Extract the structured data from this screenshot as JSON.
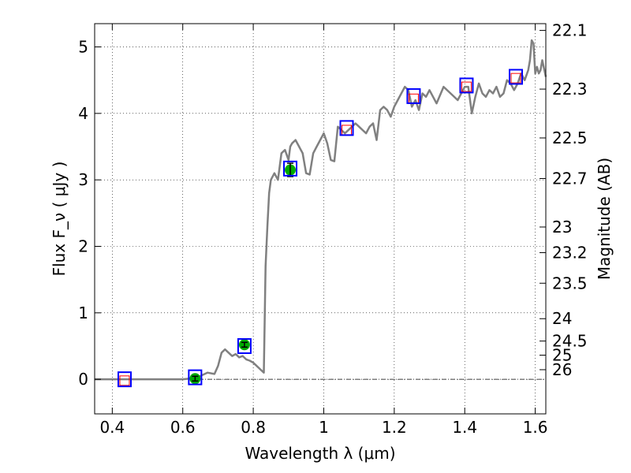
{
  "chart_data": {
    "type": "line",
    "xlabel": "Wavelength  λ (μm)",
    "ylabel": "Flux  F_ν  ( μJy )",
    "y2label": "Magnitude (AB)",
    "xlim": [
      0.35,
      1.63
    ],
    "ylim": [
      -0.52,
      5.35
    ],
    "x_ticks": [
      0.4,
      0.6,
      0.8,
      1.0,
      1.2,
      1.4,
      1.6
    ],
    "x_tick_labels": [
      "0.4",
      "0.6",
      "0.8",
      "1",
      "1.2",
      "1.4",
      "1.6"
    ],
    "y_ticks": [
      0,
      1,
      2,
      3,
      4,
      5
    ],
    "y_tick_labels": [
      "0",
      "1",
      "2",
      "3",
      "4",
      "5"
    ],
    "magnitude_ticks": [
      "22.1",
      "22.3",
      "22.5",
      "22.7",
      "23",
      "23.2",
      "23.5",
      "24",
      "24.5",
      "25",
      "26"
    ],
    "grid": true,
    "zero_line": true,
    "series": [
      {
        "role": "model spectrum",
        "color": "#808080",
        "x": [
          0.35,
          0.4,
          0.45,
          0.5,
          0.55,
          0.6,
          0.62,
          0.65,
          0.67,
          0.69,
          0.7,
          0.71,
          0.72,
          0.73,
          0.74,
          0.75,
          0.76,
          0.77,
          0.78,
          0.79,
          0.8,
          0.81,
          0.82,
          0.83,
          0.835,
          0.84,
          0.845,
          0.85,
          0.86,
          0.87,
          0.875,
          0.88,
          0.89,
          0.9,
          0.905,
          0.91,
          0.92,
          0.93,
          0.94,
          0.95,
          0.96,
          0.97,
          0.98,
          1.0,
          1.01,
          1.02,
          1.03,
          1.04,
          1.05,
          1.06,
          1.07,
          1.08,
          1.09,
          1.1,
          1.11,
          1.12,
          1.13,
          1.14,
          1.15,
          1.16,
          1.17,
          1.18,
          1.19,
          1.2,
          1.21,
          1.22,
          1.23,
          1.24,
          1.25,
          1.26,
          1.27,
          1.28,
          1.29,
          1.3,
          1.32,
          1.34,
          1.36,
          1.38,
          1.4,
          1.41,
          1.42,
          1.43,
          1.44,
          1.45,
          1.46,
          1.47,
          1.48,
          1.49,
          1.5,
          1.51,
          1.52,
          1.53,
          1.54,
          1.55,
          1.56,
          1.57,
          1.58,
          1.585,
          1.59,
          1.595,
          1.6,
          1.605,
          1.61,
          1.615,
          1.62,
          1.63
        ],
        "y": [
          0.0,
          0.0,
          0.0,
          0.0,
          0.0,
          0.0,
          0.01,
          0.05,
          0.1,
          0.08,
          0.2,
          0.4,
          0.45,
          0.4,
          0.35,
          0.38,
          0.33,
          0.35,
          0.3,
          0.28,
          0.25,
          0.2,
          0.15,
          0.1,
          1.7,
          2.3,
          2.8,
          3.0,
          3.1,
          3.0,
          3.2,
          3.4,
          3.45,
          3.3,
          3.5,
          3.55,
          3.6,
          3.5,
          3.4,
          3.1,
          3.08,
          3.4,
          3.5,
          3.7,
          3.55,
          3.3,
          3.28,
          3.8,
          3.75,
          3.7,
          3.75,
          3.8,
          3.85,
          3.8,
          3.75,
          3.7,
          3.8,
          3.85,
          3.6,
          4.05,
          4.1,
          4.05,
          3.95,
          4.1,
          4.2,
          4.3,
          4.4,
          4.35,
          4.1,
          4.2,
          4.05,
          4.3,
          4.25,
          4.35,
          4.15,
          4.4,
          4.3,
          4.2,
          4.4,
          4.4,
          4.0,
          4.25,
          4.45,
          4.3,
          4.25,
          4.35,
          4.3,
          4.4,
          4.25,
          4.3,
          4.5,
          4.45,
          4.35,
          4.45,
          4.6,
          4.5,
          4.65,
          4.8,
          5.1,
          5.05,
          4.6,
          4.7,
          4.6,
          4.65,
          4.8,
          4.55
        ]
      },
      {
        "role": "model photometry",
        "marker": "open square",
        "color": "#0000ff",
        "x": [
          0.435,
          0.635,
          0.775,
          0.905,
          1.065,
          1.255,
          1.405,
          1.545
        ],
        "y": [
          0.0,
          0.03,
          0.5,
          3.17,
          3.78,
          4.26,
          4.42,
          4.55
        ]
      },
      {
        "role": "observed photometry",
        "marker": "filled circle with error bar",
        "color": "#00aa00",
        "x": [
          0.635,
          0.775,
          0.905
        ],
        "y": [
          0.01,
          0.52,
          3.15
        ],
        "yerr": [
          0.02,
          0.03,
          0.1
        ]
      },
      {
        "role": "upper limits",
        "marker": "open square",
        "color": "#ff0000",
        "x": [
          0.435,
          1.065,
          1.255,
          1.405,
          1.545
        ],
        "y": [
          -0.02,
          3.75,
          4.22,
          4.4,
          4.53
        ]
      }
    ]
  }
}
